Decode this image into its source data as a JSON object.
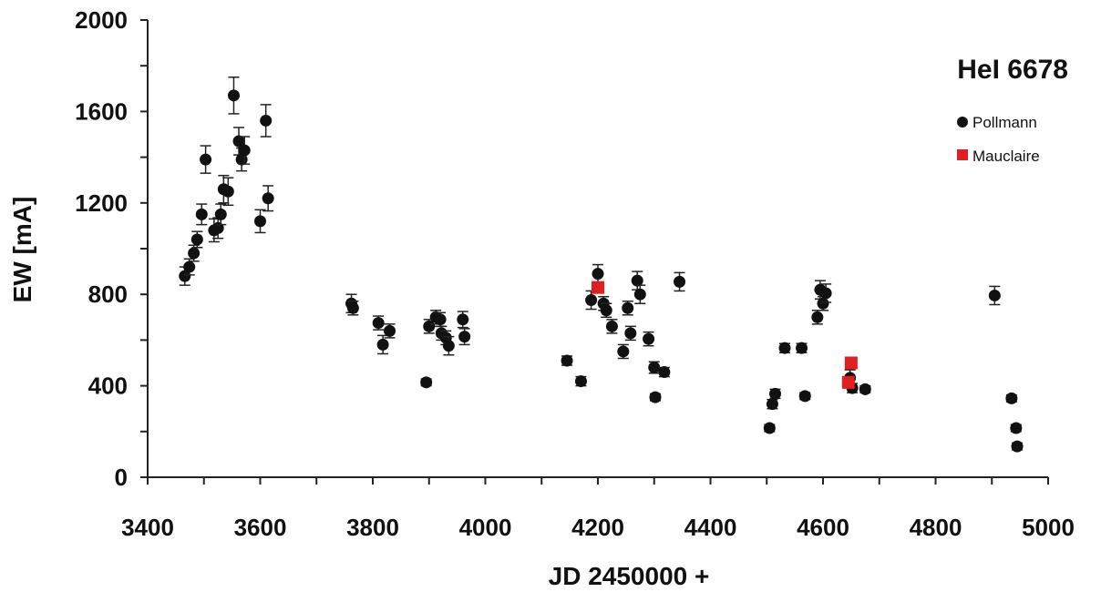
{
  "chart_data": {
    "type": "scatter",
    "title": "HeI 6678",
    "xlabel": "JD 2450000 +",
    "ylabel": "EW [mA]",
    "xlim": [
      3400,
      5000
    ],
    "ylim": [
      0,
      2000
    ],
    "xticks": [
      "3400",
      "3600",
      "3800",
      "4000",
      "4200",
      "4400",
      "4600",
      "4800",
      "5000"
    ],
    "yticks": [
      "0",
      "400",
      "800",
      "1200",
      "1600",
      "2000"
    ],
    "grid": false,
    "legend_position": "top-right",
    "series": [
      {
        "name": "Pollmann",
        "marker": "circle",
        "color": "#111111",
        "points": [
          [
            3466,
            880,
            40
          ],
          [
            3474,
            920,
            35
          ],
          [
            3482,
            980,
            35
          ],
          [
            3488,
            1040,
            35
          ],
          [
            3496,
            1150,
            45
          ],
          [
            3503,
            1390,
            60
          ],
          [
            3518,
            1080,
            50
          ],
          [
            3525,
            1090,
            45
          ],
          [
            3530,
            1150,
            45
          ],
          [
            3535,
            1260,
            60
          ],
          [
            3543,
            1250,
            60
          ],
          [
            3553,
            1670,
            80
          ],
          [
            3562,
            1470,
            60
          ],
          [
            3567,
            1390,
            50
          ],
          [
            3572,
            1430,
            60
          ],
          [
            3600,
            1120,
            50
          ],
          [
            3610,
            1560,
            70
          ],
          [
            3614,
            1220,
            55
          ],
          [
            3762,
            760,
            40
          ],
          [
            3765,
            740,
            30
          ],
          [
            3810,
            675,
            30
          ],
          [
            3818,
            580,
            40
          ],
          [
            3830,
            640,
            30
          ],
          [
            3895,
            415,
            15
          ],
          [
            3900,
            660,
            30
          ],
          [
            3912,
            700,
            30
          ],
          [
            3920,
            690,
            30
          ],
          [
            3922,
            630,
            30
          ],
          [
            3930,
            610,
            30
          ],
          [
            3935,
            575,
            40
          ],
          [
            3960,
            690,
            35
          ],
          [
            3963,
            615,
            35
          ],
          [
            4145,
            510,
            20
          ],
          [
            4170,
            420,
            20
          ],
          [
            4188,
            775,
            40
          ],
          [
            4200,
            890,
            40
          ],
          [
            4210,
            760,
            30
          ],
          [
            4215,
            730,
            30
          ],
          [
            4225,
            660,
            30
          ],
          [
            4245,
            550,
            30
          ],
          [
            4253,
            740,
            30
          ],
          [
            4258,
            630,
            30
          ],
          [
            4270,
            860,
            40
          ],
          [
            4275,
            800,
            40
          ],
          [
            4290,
            605,
            30
          ],
          [
            4300,
            480,
            25
          ],
          [
            4302,
            350,
            15
          ],
          [
            4318,
            460,
            20
          ],
          [
            4345,
            855,
            40
          ],
          [
            4505,
            215,
            15
          ],
          [
            4510,
            320,
            20
          ],
          [
            4515,
            365,
            20
          ],
          [
            4532,
            565,
            20
          ],
          [
            4562,
            565,
            20
          ],
          [
            4568,
            355,
            15
          ],
          [
            4590,
            700,
            30
          ],
          [
            4595,
            820,
            40
          ],
          [
            4600,
            760,
            30
          ],
          [
            4605,
            805,
            40
          ],
          [
            4648,
            435,
            35
          ],
          [
            4652,
            390,
            20
          ],
          [
            4675,
            385,
            15
          ],
          [
            4905,
            795,
            40
          ],
          [
            4935,
            345,
            15
          ],
          [
            4943,
            215,
            15
          ],
          [
            4945,
            135,
            15
          ]
        ]
      },
      {
        "name": "Mauclaire",
        "marker": "square",
        "color": "#e02020",
        "points": [
          [
            4200,
            830,
            0
          ],
          [
            4645,
            415,
            0
          ],
          [
            4650,
            500,
            0
          ]
        ]
      }
    ]
  }
}
